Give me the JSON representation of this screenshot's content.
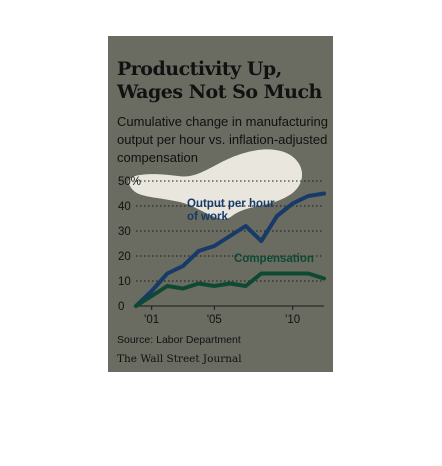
{
  "chart_data": {
    "type": "line",
    "title": "Productivity Up, Wages Not So Much",
    "subtitle": "Cumulative change in manufacturing output per hour vs. inflation-adjusted compensation",
    "x": [
      2000,
      2001,
      2002,
      2003,
      2004,
      2005,
      2006,
      2007,
      2008,
      2009,
      2010,
      2011,
      2012
    ],
    "xticks": [
      {
        "value": 2001,
        "label": "'01"
      },
      {
        "value": 2005,
        "label": "'05"
      },
      {
        "value": 2010,
        "label": "'10"
      }
    ],
    "yticks": [
      {
        "value": 0,
        "label": "0"
      },
      {
        "value": 10,
        "label": "10"
      },
      {
        "value": 20,
        "label": "20"
      },
      {
        "value": 30,
        "label": "30"
      },
      {
        "value": 40,
        "label": "40"
      },
      {
        "value": 50,
        "label": "50%"
      }
    ],
    "xlim": [
      2000,
      2012
    ],
    "ylim": [
      0,
      50
    ],
    "grid": "horizontal dotted",
    "series": [
      {
        "name": "Output per hour of work",
        "color": "#173a68",
        "values": [
          0,
          6,
          13,
          16,
          22,
          24,
          28,
          32,
          26,
          36,
          41,
          44,
          45
        ]
      },
      {
        "name": "Compensation",
        "color": "#0e4a33",
        "values": [
          0,
          4,
          8,
          7,
          9,
          8,
          9,
          8,
          13,
          13,
          13,
          13,
          11
        ]
      }
    ],
    "source": "Source: Labor Department",
    "credit": "The Wall Street Journal"
  }
}
